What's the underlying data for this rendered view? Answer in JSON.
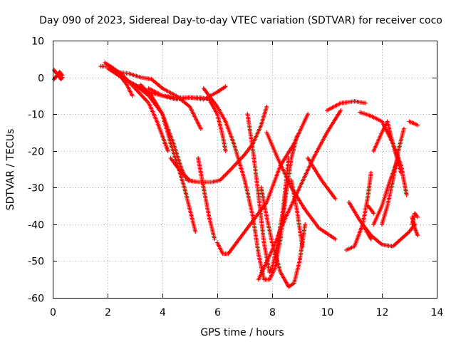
{
  "chart_data": {
    "type": "scatter",
    "title": "Day 090 of 2023, Sidereal Day-to-day VTEC variation (SDTVAR) for receiver coco",
    "xlabel": "GPS time / hours",
    "ylabel": "SDTVAR / TECUs",
    "xlim": [
      0,
      14
    ],
    "ylim": [
      -60,
      10
    ],
    "xticks": [
      0,
      2,
      4,
      6,
      8,
      10,
      12,
      14
    ],
    "yticks": [
      -60,
      -50,
      -40,
      -30,
      -20,
      -10,
      0,
      10
    ],
    "grid": true,
    "legend": "none",
    "marker": "plus",
    "color": "#ff0000",
    "series": [
      {
        "points": [
          [
            0.05,
            2
          ],
          [
            0.1,
            1.5
          ],
          [
            0.15,
            1
          ],
          [
            0.2,
            0.5
          ],
          [
            0.25,
            0
          ],
          [
            0.3,
            -0.5
          ],
          [
            0.35,
            0
          ]
        ]
      },
      {
        "points": [
          [
            0.05,
            -0.5
          ],
          [
            0.1,
            0
          ],
          [
            0.15,
            0.5
          ],
          [
            0.2,
            1
          ],
          [
            0.25,
            1.5
          ],
          [
            0.3,
            1
          ],
          [
            0.35,
            0.5
          ]
        ]
      },
      {
        "points": [
          [
            1.75,
            3
          ],
          [
            2.1,
            3
          ],
          [
            2.4,
            1
          ],
          [
            2.7,
            -2
          ],
          [
            2.9,
            -5
          ]
        ]
      },
      {
        "points": [
          [
            2.0,
            2.5
          ],
          [
            2.5,
            0
          ],
          [
            3.0,
            -2
          ],
          [
            3.5,
            -4
          ],
          [
            4.0,
            -5
          ],
          [
            4.5,
            -6
          ],
          [
            5.0,
            -5.5
          ],
          [
            5.5,
            -6
          ],
          [
            6.0,
            -4
          ],
          [
            6.3,
            -2.5
          ]
        ]
      },
      {
        "points": [
          [
            2.3,
            1.5
          ],
          [
            2.8,
            1
          ],
          [
            3.2,
            0
          ],
          [
            3.6,
            -0.5
          ],
          [
            4.0,
            -3
          ],
          [
            4.5,
            -5
          ],
          [
            5.0,
            -8
          ],
          [
            5.2,
            -11
          ],
          [
            5.4,
            -14
          ]
        ]
      },
      {
        "points": [
          [
            1.9,
            4
          ],
          [
            2.5,
            1
          ],
          [
            3.0,
            -3
          ],
          [
            3.5,
            -7
          ],
          [
            3.8,
            -12
          ],
          [
            4.1,
            -18
          ],
          [
            4.2,
            -20
          ]
        ]
      },
      {
        "points": [
          [
            2.5,
            0
          ],
          [
            3.0,
            -2
          ],
          [
            3.5,
            -5
          ],
          [
            4.0,
            -10
          ],
          [
            4.3,
            -18
          ],
          [
            4.6,
            -25
          ],
          [
            4.8,
            -30
          ],
          [
            5.0,
            -36
          ],
          [
            5.2,
            -42
          ]
        ]
      },
      {
        "points": [
          [
            3.2,
            -2
          ],
          [
            3.6,
            -5
          ],
          [
            4.0,
            -10
          ],
          [
            4.4,
            -18
          ],
          [
            4.7,
            -25
          ],
          [
            4.9,
            -28
          ],
          [
            5.3,
            -28.5
          ],
          [
            5.8,
            -28.5
          ],
          [
            6.1,
            -28
          ],
          [
            6.5,
            -25
          ],
          [
            7.0,
            -21
          ],
          [
            7.3,
            -18
          ],
          [
            7.6,
            -13
          ],
          [
            7.8,
            -8
          ]
        ]
      },
      {
        "points": [
          [
            3.5,
            -3
          ],
          [
            4.0,
            -5
          ],
          [
            4.5,
            -5.5
          ],
          [
            5.0,
            -5.5
          ],
          [
            5.4,
            -5.5
          ],
          [
            5.7,
            -6
          ],
          [
            6.0,
            -10
          ],
          [
            6.2,
            -16
          ],
          [
            6.3,
            -20
          ]
        ]
      },
      {
        "points": [
          [
            4.3,
            -22
          ],
          [
            4.7,
            -26
          ],
          [
            5.0,
            -28
          ]
        ]
      },
      {
        "points": [
          [
            5.3,
            -22
          ],
          [
            5.5,
            -30
          ],
          [
            5.7,
            -38
          ],
          [
            5.9,
            -44
          ]
        ]
      },
      {
        "points": [
          [
            5.5,
            -3
          ],
          [
            6.0,
            -8
          ],
          [
            6.3,
            -12
          ],
          [
            6.6,
            -18
          ],
          [
            7.0,
            -28
          ],
          [
            7.3,
            -38
          ],
          [
            7.5,
            -48
          ],
          [
            7.7,
            -55
          ],
          [
            7.9,
            -55
          ],
          [
            8.1,
            -52
          ],
          [
            8.3,
            -44
          ],
          [
            8.5,
            -32
          ],
          [
            8.7,
            -22
          ],
          [
            8.9,
            -16
          ]
        ]
      },
      {
        "points": [
          [
            6.0,
            -45
          ],
          [
            6.2,
            -48
          ],
          [
            6.4,
            -48
          ],
          [
            6.7,
            -45
          ],
          [
            7.2,
            -40
          ],
          [
            7.8,
            -34
          ],
          [
            8.3,
            -24
          ],
          [
            8.8,
            -18
          ],
          [
            9.3,
            -10
          ]
        ]
      },
      {
        "points": [
          [
            7.1,
            -10
          ],
          [
            7.3,
            -20
          ],
          [
            7.5,
            -32
          ],
          [
            7.7,
            -45
          ],
          [
            7.9,
            -53
          ],
          [
            8.0,
            -52
          ],
          [
            8.2,
            -45
          ],
          [
            8.4,
            -36
          ],
          [
            8.6,
            -22
          ]
        ]
      },
      {
        "points": [
          [
            7.6,
            -30
          ],
          [
            7.8,
            -38
          ],
          [
            8.0,
            -45
          ],
          [
            8.3,
            -53
          ],
          [
            8.6,
            -57
          ],
          [
            8.8,
            -56
          ],
          [
            9.0,
            -50
          ],
          [
            9.2,
            -40
          ]
        ]
      },
      {
        "points": [
          [
            7.8,
            -15
          ],
          [
            8.2,
            -22
          ],
          [
            8.7,
            -30
          ],
          [
            9.2,
            -36
          ],
          [
            9.7,
            -41
          ],
          [
            10.3,
            -44
          ]
        ]
      },
      {
        "points": [
          [
            7.5,
            -55
          ],
          [
            8.0,
            -47
          ],
          [
            8.5,
            -38
          ],
          [
            9.0,
            -30
          ],
          [
            9.5,
            -22
          ],
          [
            10.0,
            -15
          ],
          [
            10.5,
            -9
          ]
        ]
      },
      {
        "points": [
          [
            8.7,
            -28
          ],
          [
            8.9,
            -36
          ],
          [
            9.1,
            -46
          ]
        ]
      },
      {
        "points": [
          [
            9.3,
            -22
          ],
          [
            9.8,
            -28
          ],
          [
            10.3,
            -33
          ]
        ]
      },
      {
        "points": [
          [
            10.0,
            -9
          ],
          [
            10.5,
            -7
          ],
          [
            11.0,
            -6.5
          ],
          [
            11.4,
            -7
          ]
        ]
      },
      {
        "points": [
          [
            10.7,
            -47
          ],
          [
            11.0,
            -46
          ],
          [
            11.3,
            -40
          ],
          [
            11.5,
            -32
          ],
          [
            11.6,
            -26
          ]
        ]
      },
      {
        "points": [
          [
            10.8,
            -34
          ],
          [
            11.2,
            -39
          ],
          [
            11.6,
            -43
          ],
          [
            12.0,
            -45.5
          ],
          [
            12.4,
            -46
          ],
          [
            12.7,
            -44
          ],
          [
            13.0,
            -42
          ],
          [
            13.2,
            -40
          ]
        ]
      },
      {
        "points": [
          [
            11.2,
            -9.5
          ],
          [
            11.6,
            -10.5
          ],
          [
            12.0,
            -12
          ],
          [
            12.4,
            -18
          ],
          [
            12.7,
            -24
          ],
          [
            12.9,
            -32
          ]
        ]
      },
      {
        "points": [
          [
            11.3,
            -40
          ],
          [
            11.6,
            -44
          ]
        ]
      },
      {
        "points": [
          [
            11.5,
            -35
          ],
          [
            11.7,
            -37
          ]
        ]
      },
      {
        "points": [
          [
            11.7,
            -20
          ],
          [
            12.0,
            -15
          ],
          [
            12.2,
            -12
          ],
          [
            12.4,
            -18
          ],
          [
            12.7,
            -26
          ]
        ]
      },
      {
        "points": [
          [
            12.0,
            -40
          ],
          [
            12.2,
            -35
          ],
          [
            12.4,
            -28
          ],
          [
            12.6,
            -20
          ],
          [
            12.8,
            -14
          ]
        ]
      },
      {
        "points": [
          [
            11.7,
            -40
          ],
          [
            12.0,
            -35
          ],
          [
            12.3,
            -28
          ],
          [
            12.6,
            -22
          ]
        ]
      },
      {
        "points": [
          [
            13.0,
            -12
          ],
          [
            13.3,
            -13
          ]
        ]
      },
      {
        "points": [
          [
            13.1,
            -38
          ],
          [
            13.2,
            -41
          ],
          [
            13.3,
            -43
          ]
        ]
      },
      {
        "points": [
          [
            13.1,
            -40
          ],
          [
            13.2,
            -37
          ],
          [
            13.3,
            -38
          ]
        ]
      }
    ]
  }
}
